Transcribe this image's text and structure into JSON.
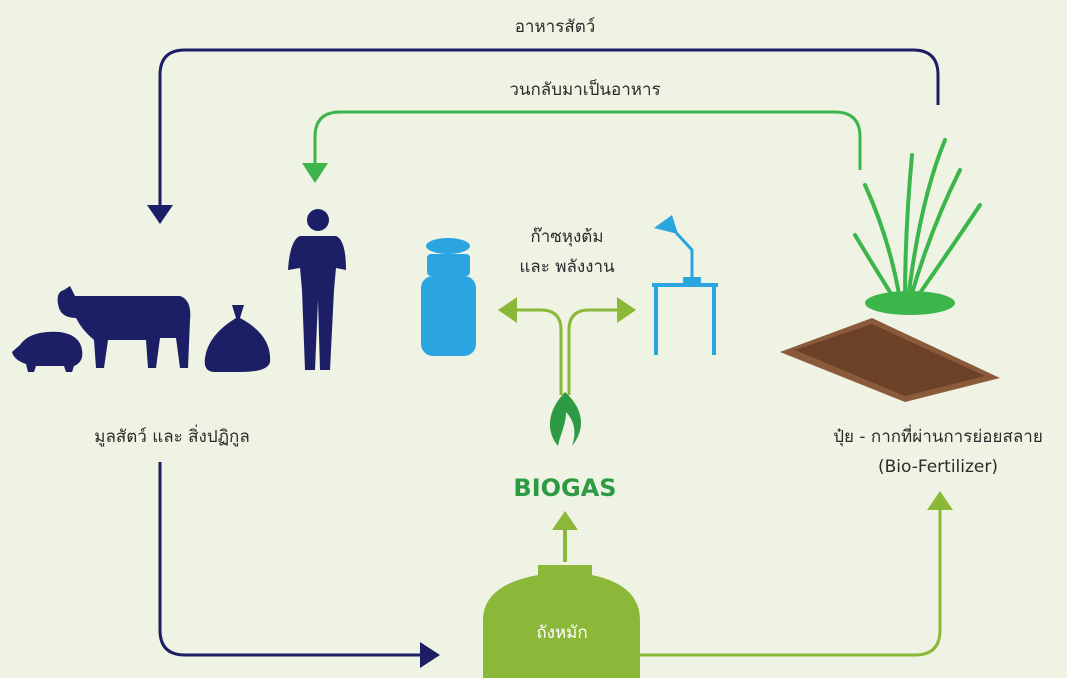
{
  "labels": {
    "top_loop": "อาหารสัตว์",
    "return_loop": "วนกลับมาเป็นอาหาร",
    "energy": [
      "ก๊าซหุงต้ม",
      "และ พลังงาน"
    ],
    "waste": "มูลสัตว์ และ สิ่งปฏิกูล",
    "biogas": "BIOGAS",
    "fertilizer": [
      "ปุ๋ย - กากที่ผ่านการย่อยสลาย",
      "(Bio-Fertilizer)"
    ],
    "digester": "ถังหมัก"
  }
}
